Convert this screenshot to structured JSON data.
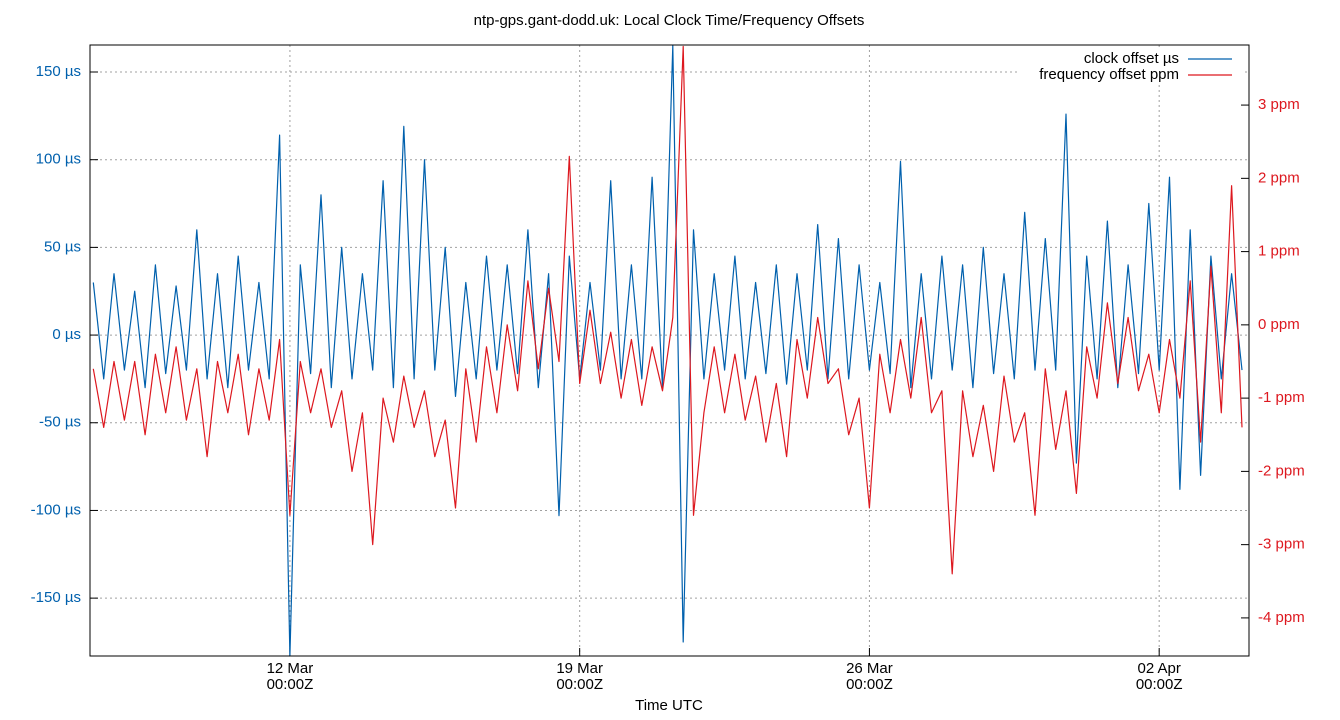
{
  "chart_data": {
    "type": "line",
    "title": "ntp-gps.gant-dodd.uk: Local Clock Time/Frequency Offsets",
    "xlabel": "Time UTC",
    "x": [
      -4.75,
      -4.5,
      -4.25,
      -4.0,
      -3.75,
      -3.5,
      -3.25,
      -3.0,
      -2.75,
      -2.5,
      -2.25,
      -2.0,
      -1.75,
      -1.5,
      -1.25,
      -1.0,
      -0.75,
      -0.5,
      -0.25,
      0.0,
      0.25,
      0.5,
      0.75,
      1.0,
      1.25,
      1.5,
      1.75,
      2.0,
      2.25,
      2.5,
      2.75,
      3.0,
      3.25,
      3.5,
      3.75,
      4.0,
      4.25,
      4.5,
      4.75,
      5.0,
      5.25,
      5.5,
      5.75,
      6.0,
      6.25,
      6.5,
      6.75,
      7.0,
      7.25,
      7.5,
      7.75,
      8.0,
      8.25,
      8.5,
      8.75,
      9.0,
      9.25,
      9.5,
      9.75,
      10.0,
      10.25,
      10.5,
      10.75,
      11.0,
      11.25,
      11.5,
      11.75,
      12.0,
      12.25,
      12.5,
      12.75,
      13.0,
      13.25,
      13.5,
      13.75,
      14.0,
      14.25,
      14.5,
      14.75,
      15.0,
      15.25,
      15.5,
      15.75,
      16.0,
      16.25,
      16.5,
      16.75,
      17.0,
      17.25,
      17.5,
      17.75,
      18.0,
      18.25,
      18.5,
      18.75,
      19.0,
      19.25,
      19.5,
      19.75,
      20.0,
      20.25,
      20.5,
      20.75,
      21.0,
      21.25,
      21.5,
      21.75,
      22.0,
      22.25,
      22.5,
      22.75,
      23.0
    ],
    "series": [
      {
        "name": "clock offset µs",
        "color": "#0060ad",
        "axis": "y",
        "values": [
          30,
          -25,
          35,
          -20,
          25,
          -30,
          40,
          -22,
          28,
          -20,
          60,
          -25,
          35,
          -30,
          45,
          -20,
          30,
          -25,
          114,
          -183,
          40,
          -22,
          80,
          -30,
          50,
          -25,
          35,
          -20,
          88,
          -30,
          119,
          -25,
          100,
          -20,
          50,
          -35,
          30,
          -25,
          45,
          -20,
          40,
          -22,
          60,
          -30,
          35,
          -103,
          45,
          -25,
          30,
          -20,
          88,
          -25,
          40,
          -25,
          90,
          -30,
          165,
          -175,
          60,
          -25,
          35,
          -20,
          45,
          -25,
          30,
          -22,
          40,
          -28,
          35,
          -20,
          63,
          -25,
          55,
          -25,
          40,
          -20,
          30,
          -22,
          99,
          -30,
          35,
          -25,
          45,
          -20,
          40,
          -30,
          50,
          -22,
          35,
          -25,
          70,
          -20,
          55,
          -20,
          126,
          -73,
          45,
          -25,
          65,
          -30,
          40,
          -22,
          75,
          -20,
          90,
          -88,
          60,
          -80,
          45,
          -25,
          35,
          -20
        ]
      },
      {
        "name": "frequency offset ppm",
        "color": "#dd181f",
        "axis": "y2",
        "values": [
          -0.6,
          -1.4,
          -0.5,
          -1.3,
          -0.5,
          -1.5,
          -0.4,
          -1.2,
          -0.3,
          -1.3,
          -0.6,
          -1.8,
          -0.5,
          -1.2,
          -0.4,
          -1.5,
          -0.6,
          -1.3,
          -0.2,
          -2.6,
          -0.5,
          -1.2,
          -0.6,
          -1.4,
          -0.9,
          -2.0,
          -1.2,
          -3.0,
          -1.0,
          -1.6,
          -0.7,
          -1.4,
          -0.9,
          -1.8,
          -1.3,
          -2.5,
          -0.6,
          -1.6,
          -0.3,
          -1.2,
          0.0,
          -0.9,
          0.6,
          -0.6,
          0.5,
          -0.5,
          2.3,
          -0.8,
          0.2,
          -0.8,
          -0.1,
          -1.0,
          -0.2,
          -1.1,
          -0.3,
          -0.9,
          0.1,
          3.8,
          -2.6,
          -1.2,
          -0.3,
          -1.2,
          -0.4,
          -1.3,
          -0.7,
          -1.6,
          -0.8,
          -1.8,
          -0.2,
          -1.0,
          0.1,
          -0.8,
          -0.6,
          -1.5,
          -1.0,
          -2.5,
          -0.4,
          -1.2,
          -0.2,
          -1.0,
          0.1,
          -1.2,
          -0.9,
          -3.4,
          -0.9,
          -1.8,
          -1.1,
          -2.0,
          -0.7,
          -1.6,
          -1.2,
          -2.6,
          -0.6,
          -1.7,
          -0.9,
          -2.3,
          -0.3,
          -1.0,
          0.3,
          -0.8,
          0.1,
          -0.9,
          -0.4,
          -1.2,
          -0.2,
          -1.0,
          0.6,
          -1.6,
          0.8,
          -1.2,
          1.9,
          -1.4
        ]
      }
    ],
    "xlim": [
      -4.83,
      23.17
    ],
    "xticks": [
      {
        "value": 0,
        "label": [
          "12 Mar",
          "00:00Z"
        ]
      },
      {
        "value": 7,
        "label": [
          "19 Mar",
          "00:00Z"
        ]
      },
      {
        "value": 14,
        "label": [
          "26 Mar",
          "00:00Z"
        ]
      },
      {
        "value": 21,
        "label": [
          "02 Apr",
          "00:00Z"
        ]
      }
    ],
    "ylim": [
      -183,
      165.4
    ],
    "yticks": [
      {
        "value": 150,
        "label": "150 µs"
      },
      {
        "value": 100,
        "label": "100 µs"
      },
      {
        "value": 50,
        "label": "50 µs"
      },
      {
        "value": 0,
        "label": "0 µs"
      },
      {
        "value": -50,
        "label": "-50 µs"
      },
      {
        "value": -100,
        "label": "-100 µs"
      },
      {
        "value": -150,
        "label": "-150 µs"
      }
    ],
    "y2lim": [
      -4.52,
      3.82
    ],
    "y2ticks": [
      {
        "value": 3,
        "label": "3 ppm"
      },
      {
        "value": 2,
        "label": "2 ppm"
      },
      {
        "value": 1,
        "label": "1 ppm"
      },
      {
        "value": 0,
        "label": "0 ppm"
      },
      {
        "value": -1,
        "label": "-1 ppm"
      },
      {
        "value": -2,
        "label": "-2 ppm"
      },
      {
        "value": -3,
        "label": "-3 ppm"
      },
      {
        "value": -4,
        "label": "-4 ppm"
      }
    ],
    "grid": true,
    "legend": "top-right"
  }
}
